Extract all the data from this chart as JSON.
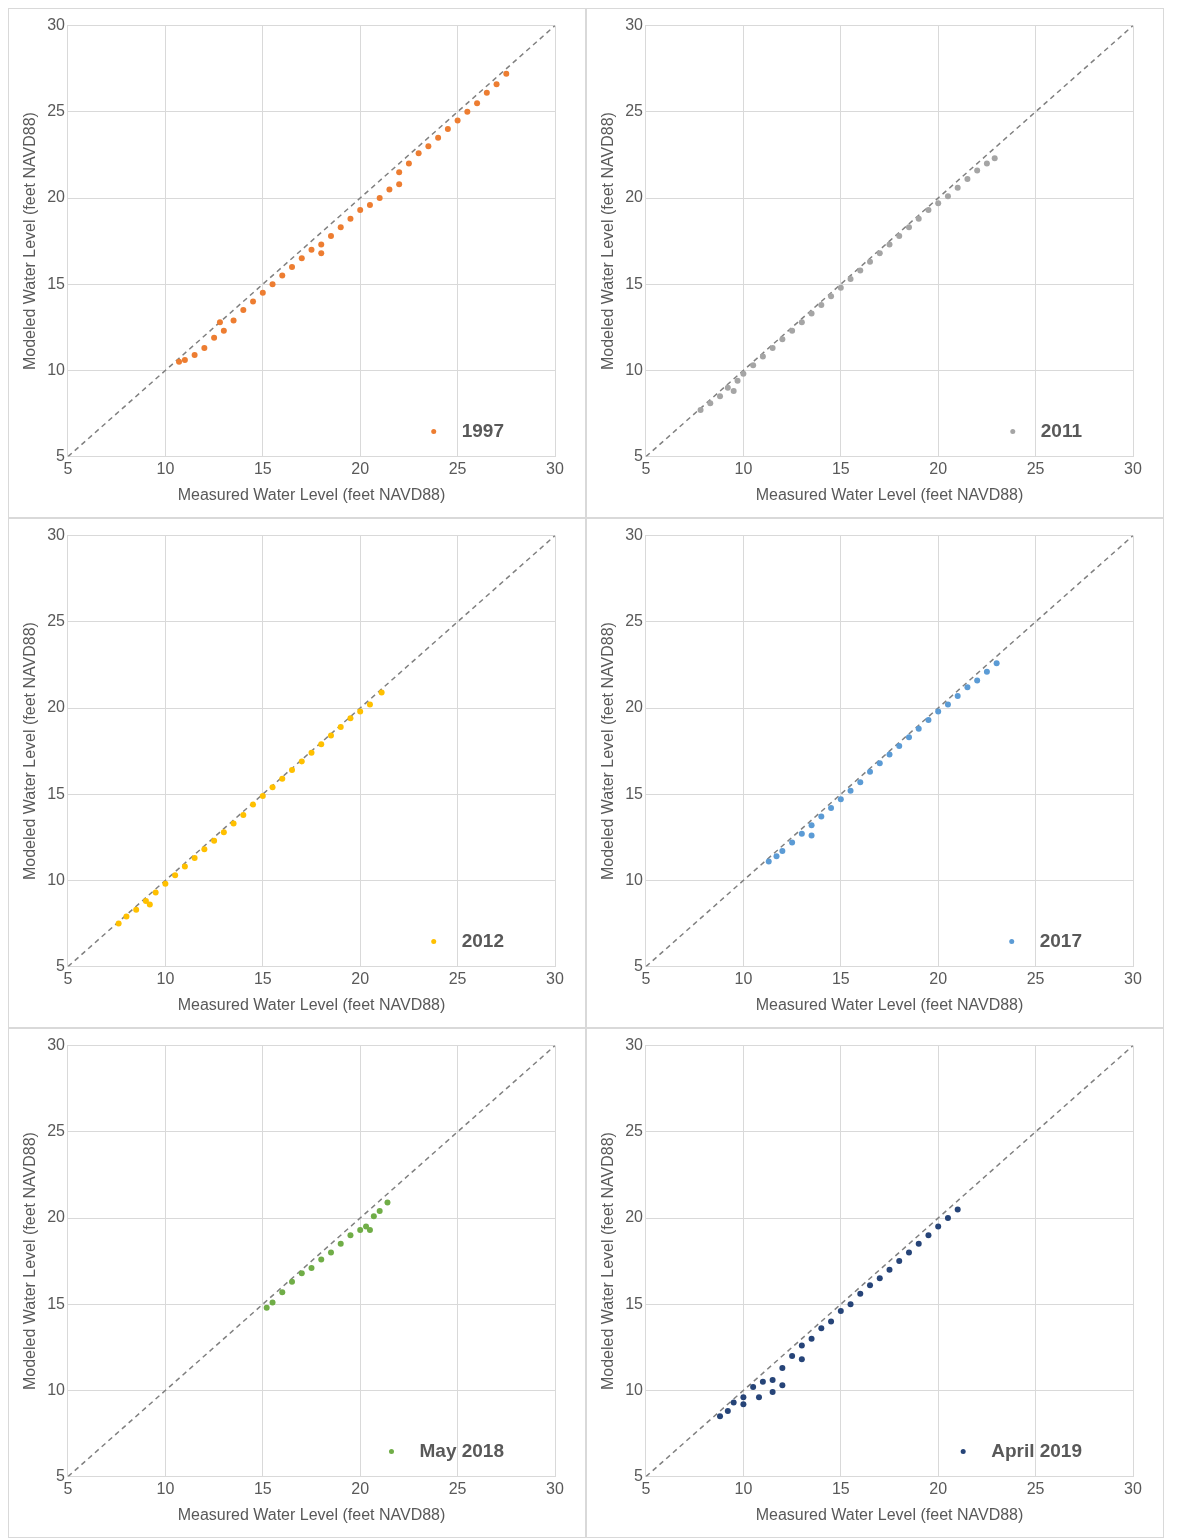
{
  "chart_data": [
    {
      "type": "scatter",
      "xlabel": "Measured Water Level (feet NAVD88)",
      "ylabel": "Modeled Water Level (feet NAVD88)",
      "xlim": [
        5,
        30
      ],
      "ylim": [
        5,
        30
      ],
      "xticks": [
        5,
        10,
        15,
        20,
        25,
        30
      ],
      "yticks": [
        5,
        10,
        15,
        20,
        25,
        30
      ],
      "grid": true,
      "legend": "bottom right",
      "series": [
        {
          "name": "1997",
          "marker": "circle",
          "color": "#ed7d31",
          "x": [
            10.7,
            11,
            11.5,
            12,
            12.5,
            12.8,
            13,
            13.5,
            14,
            14.5,
            15,
            15.5,
            16,
            16.5,
            17,
            17.5,
            18,
            18,
            18.5,
            19,
            19.5,
            20,
            20.5,
            21,
            21.5,
            22,
            22,
            22.5,
            23,
            23.5,
            24,
            24.5,
            25,
            25.5,
            26,
            26.5,
            27,
            27.5
          ],
          "values": [
            10.5,
            10.6,
            10.9,
            11.3,
            11.9,
            12.8,
            12.3,
            12.9,
            13.5,
            14,
            14.5,
            15,
            15.5,
            16,
            16.5,
            17,
            17.3,
            16.8,
            17.8,
            18.3,
            18.8,
            19.3,
            19.6,
            20,
            20.5,
            21.5,
            20.8,
            22,
            22.6,
            23,
            23.5,
            24,
            24.5,
            25,
            25.5,
            26.1,
            26.6,
            27.2
          ]
        },
        {
          "type": "line",
          "marker": "none",
          "line_style": "dashed",
          "color": "#808080",
          "x": [
            5,
            30
          ],
          "values": [
            5,
            30
          ]
        }
      ]
    },
    {
      "type": "scatter",
      "xlabel": "Measured Water Level (feet NAVD88)",
      "ylabel": "Modeled Water Level (feet NAVD88)",
      "xlim": [
        5,
        30
      ],
      "ylim": [
        5,
        30
      ],
      "xticks": [
        5,
        10,
        15,
        20,
        25,
        30
      ],
      "yticks": [
        5,
        10,
        15,
        20,
        25,
        30
      ],
      "grid": true,
      "legend": "bottom right",
      "series": [
        {
          "name": "2011",
          "marker": "circle",
          "color": "#a5a5a5",
          "x": [
            7.8,
            8.3,
            8.8,
            9.2,
            9.5,
            9.7,
            10,
            10.5,
            11,
            11.5,
            12,
            12.5,
            13,
            13.5,
            14,
            14.5,
            15,
            15.5,
            16,
            16.5,
            17,
            17.5,
            18,
            18.5,
            19,
            19.5,
            20,
            20.5,
            21,
            21.5,
            22,
            22.5,
            22.9
          ],
          "values": [
            7.7,
            8.1,
            8.5,
            9,
            8.8,
            9.4,
            9.8,
            10.3,
            10.8,
            11.3,
            11.8,
            12.3,
            12.8,
            13.3,
            13.8,
            14.3,
            14.8,
            15.3,
            15.8,
            16.3,
            16.8,
            17.3,
            17.8,
            18.3,
            18.8,
            19.3,
            19.7,
            20.1,
            20.6,
            21.1,
            21.6,
            22,
            22.3
          ]
        },
        {
          "type": "line",
          "marker": "none",
          "line_style": "dashed",
          "color": "#808080",
          "x": [
            5,
            30
          ],
          "values": [
            5,
            30
          ]
        }
      ]
    },
    {
      "type": "scatter",
      "xlabel": "Measured Water Level (feet NAVD88)",
      "ylabel": "Modeled Water Level (feet NAVD88)",
      "xlim": [
        5,
        30
      ],
      "ylim": [
        5,
        30
      ],
      "xticks": [
        5,
        10,
        15,
        20,
        25,
        30
      ],
      "yticks": [
        5,
        10,
        15,
        20,
        25,
        30
      ],
      "grid": true,
      "legend": "bottom right",
      "series": [
        {
          "name": "2012",
          "marker": "circle",
          "color": "#ffc000",
          "x": [
            7.6,
            8,
            8.5,
            9,
            9.2,
            9.5,
            10,
            10.5,
            11,
            11.5,
            12,
            12.5,
            13,
            13.5,
            14,
            14.5,
            15,
            15.5,
            16,
            16.5,
            17,
            17.5,
            18,
            18.5,
            19,
            19.5,
            20,
            20.5,
            21.1
          ],
          "values": [
            7.5,
            7.9,
            8.3,
            8.8,
            8.6,
            9.3,
            9.8,
            10.3,
            10.8,
            11.3,
            11.8,
            12.3,
            12.8,
            13.3,
            13.8,
            14.4,
            14.9,
            15.4,
            15.9,
            16.4,
            16.9,
            17.4,
            17.9,
            18.4,
            18.9,
            19.4,
            19.8,
            20.2,
            20.9
          ]
        },
        {
          "type": "line",
          "marker": "none",
          "line_style": "dashed",
          "color": "#808080",
          "x": [
            5,
            30
          ],
          "values": [
            5,
            30
          ]
        }
      ]
    },
    {
      "type": "scatter",
      "xlabel": "Measured Water Level (feet NAVD88)",
      "ylabel": "Modeled Water Level (feet NAVD88)",
      "xlim": [
        5,
        30
      ],
      "ylim": [
        5,
        30
      ],
      "xticks": [
        5,
        10,
        15,
        20,
        25,
        30
      ],
      "yticks": [
        5,
        10,
        15,
        20,
        25,
        30
      ],
      "grid": true,
      "legend": "bottom right",
      "series": [
        {
          "name": "2017",
          "marker": "circle",
          "color": "#5b9bd5",
          "x": [
            11.3,
            11.7,
            12,
            12.5,
            13,
            13.5,
            13.5,
            14,
            14.5,
            15,
            15.5,
            16,
            16.5,
            17,
            17.5,
            18,
            18.5,
            19,
            19.5,
            20,
            20.5,
            21,
            21.5,
            22,
            22.5,
            23
          ],
          "values": [
            11.1,
            11.4,
            11.7,
            12.2,
            12.7,
            13.2,
            12.6,
            13.7,
            14.2,
            14.7,
            15.2,
            15.7,
            16.3,
            16.8,
            17.3,
            17.8,
            18.3,
            18.8,
            19.3,
            19.8,
            20.2,
            20.7,
            21.2,
            21.6,
            22.1,
            22.6
          ]
        },
        {
          "type": "line",
          "marker": "none",
          "line_style": "dashed",
          "color": "#808080",
          "x": [
            5,
            30
          ],
          "values": [
            5,
            30
          ]
        }
      ]
    },
    {
      "type": "scatter",
      "xlabel": "Measured Water Level (feet NAVD88)",
      "ylabel": "Modeled Water Level (feet NAVD88)",
      "xlim": [
        5,
        30
      ],
      "ylim": [
        5,
        30
      ],
      "xticks": [
        5,
        10,
        15,
        20,
        25,
        30
      ],
      "yticks": [
        5,
        10,
        15,
        20,
        25,
        30
      ],
      "grid": true,
      "legend": "bottom right",
      "series": [
        {
          "name": "May 2018",
          "marker": "circle",
          "color": "#70ad47",
          "x": [
            15.2,
            15.5,
            16,
            16.5,
            17,
            17.5,
            18,
            18.5,
            19,
            19.5,
            20,
            20.3,
            20.5,
            20.7,
            21,
            21.4
          ],
          "values": [
            14.8,
            15.1,
            15.7,
            16.3,
            16.8,
            17.1,
            17.6,
            18,
            18.5,
            19,
            19.3,
            19.5,
            19.3,
            20.1,
            20.4,
            20.9
          ]
        },
        {
          "type": "line",
          "marker": "none",
          "line_style": "dashed",
          "color": "#808080",
          "x": [
            5,
            30
          ],
          "values": [
            5,
            30
          ]
        }
      ]
    },
    {
      "type": "scatter",
      "xlabel": "Measured Water Level (feet NAVD88)",
      "ylabel": "Modeled Water Level (feet NAVD88)",
      "xlim": [
        5,
        30
      ],
      "ylim": [
        5,
        30
      ],
      "xticks": [
        5,
        10,
        15,
        20,
        25,
        30
      ],
      "yticks": [
        5,
        10,
        15,
        20,
        25,
        30
      ],
      "grid": true,
      "legend": "bottom right",
      "series": [
        {
          "name": "April 2019",
          "marker": "circle",
          "color": "#264478",
          "x": [
            8.8,
            9.2,
            9.5,
            10,
            10,
            10.5,
            10.8,
            11,
            11.5,
            11.5,
            12,
            12,
            12.5,
            13,
            13,
            13.5,
            14,
            14.5,
            15,
            15.5,
            16,
            16.5,
            17,
            17.5,
            18,
            18.5,
            19,
            19.5,
            20,
            20.5,
            21
          ],
          "values": [
            8.5,
            8.8,
            9.3,
            9.6,
            9.2,
            10.2,
            9.6,
            10.5,
            10.6,
            9.9,
            11.3,
            10.3,
            12,
            12.6,
            11.8,
            13,
            13.6,
            14,
            14.6,
            15,
            15.6,
            16.1,
            16.5,
            17,
            17.5,
            18,
            18.5,
            19,
            19.5,
            20,
            20.5
          ]
        },
        {
          "type": "line",
          "marker": "none",
          "line_style": "dashed",
          "color": "#808080",
          "x": [
            5,
            30
          ],
          "values": [
            5,
            30
          ]
        }
      ]
    }
  ]
}
